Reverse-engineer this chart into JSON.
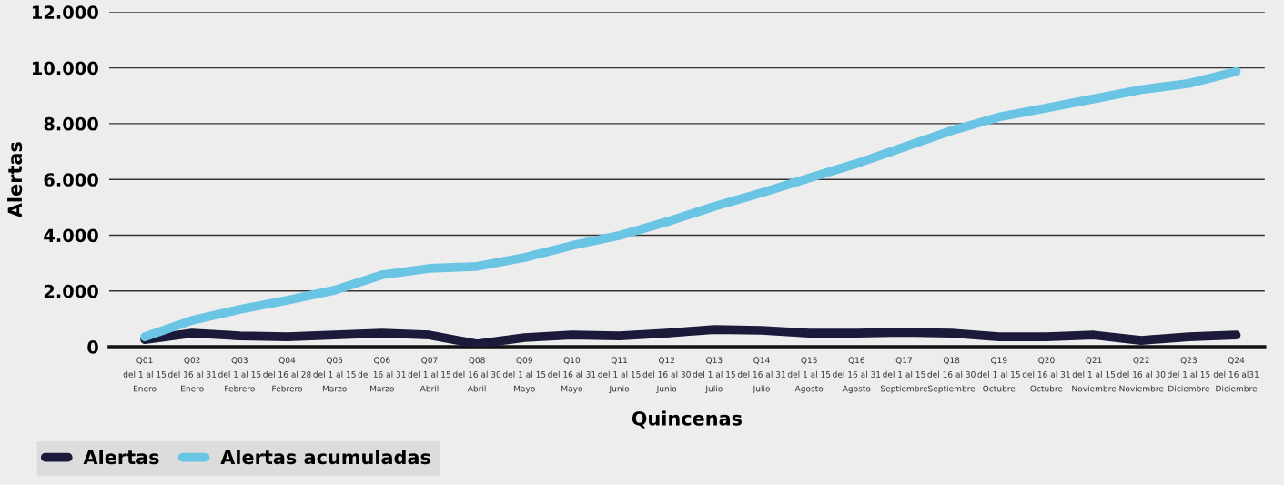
{
  "chart_data": {
    "type": "line",
    "xlabel": "Quincenas",
    "ylabel": "Alertas",
    "categories": [
      "Q01\ndel 1 al 15\nEnero",
      "Q02\ndel 16 al 31\nEnero",
      "Q03\ndel 1 al 15\nFebrero",
      "Q04\ndel 16 al 28\nFebrero",
      "Q05\ndel 1 al 15\nMarzo",
      "Q06\ndel 16 al 31\nMarzo",
      "Q07\ndel 1 al 15\nAbril",
      "Q08\ndel 16 al 30\nAbril",
      "Q09\ndel 1 al 15\nMayo",
      "Q10\ndel 16 al 31\nMayo",
      "Q11\ndel 1 al 15\nJunio",
      "Q12\ndel 16 al 30\nJunio",
      "Q13\ndel 1 al 15\nJulio",
      "Q14\ndel 16 al 31\nJulio",
      "Q15\ndel 1 al 15\nAgosto",
      "Q16\ndel 16 al 31\nAgosto",
      "Q17\ndel 1 al 15\nSeptiembre",
      "Q18\ndel 16 al 30\nSeptiembre",
      "Q19\ndel 1 al 15\nOctubre",
      "Q20\ndel 16 al 31\nOctubre",
      "Q21\ndel 1 al 15\nNoviembre",
      "Q22\ndel 16 al 30\nNoviembre",
      "Q23\ndel 1 al 15\nDiciembre",
      "Q24\ndel 16 al31\nDiciembre"
    ],
    "series": [
      {
        "name": "Alertas",
        "color": "#1c1a3a",
        "values": [
          260,
          490,
          390,
          360,
          420,
          490,
          420,
          100,
          330,
          420,
          390,
          490,
          620,
          590,
          490,
          490,
          520,
          490,
          360,
          360,
          420,
          230,
          360,
          420
        ]
      },
      {
        "name": "Alertas acumuladas",
        "color": "#6ac4e4",
        "values": [
          360,
          950,
          1340,
          1670,
          2030,
          2580,
          2810,
          2880,
          3200,
          3630,
          3990,
          4480,
          5030,
          5520,
          6050,
          6570,
          7160,
          7750,
          8240,
          8560,
          8890,
          9220,
          9440,
          9870
        ]
      }
    ],
    "ylim": [
      0,
      12000
    ],
    "yticks": [
      {
        "value": 0,
        "label": "0"
      },
      {
        "value": 2000,
        "label": "2.000"
      },
      {
        "value": 4000,
        "label": "4.000"
      },
      {
        "value": 6000,
        "label": "6.000"
      },
      {
        "value": 8000,
        "label": "8.000"
      },
      {
        "value": 10000,
        "label": "10.000"
      },
      {
        "value": 12000,
        "label": "12.000"
      }
    ],
    "grid": "y",
    "legend": "bottom left",
    "marker": "none",
    "line_style": "solid"
  }
}
